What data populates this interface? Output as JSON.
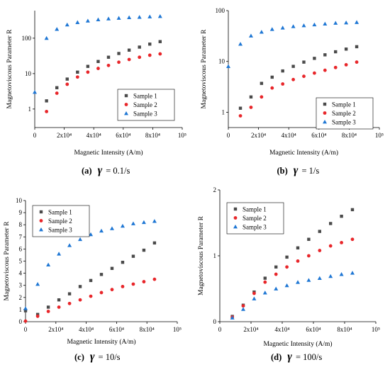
{
  "legend_labels": [
    "Sample 1",
    "Sample 2",
    "Sample 3"
  ],
  "colors": {
    "sample1": "#4a4a4a",
    "sample2": "#e8262a",
    "sample3": "#1f77d4"
  },
  "chart_data": [
    {
      "type": "scatter",
      "caption_letter": "(a)",
      "caption_rate": "= 0.1/s",
      "ylabel": "Magnetoviscous Parameter R",
      "xlabel": "Magnetic Intensity (A/m)",
      "yscale": "log",
      "ylim": [
        0.3,
        600
      ],
      "xlim": [
        0,
        100000
      ],
      "x_ticks": [
        "0",
        "2x10⁴",
        "4x10⁴",
        "6x10⁴",
        "8x10⁴",
        "10⁵"
      ],
      "y_ticks": [
        "1",
        "10",
        "100"
      ],
      "legend": "center-right",
      "series": [
        {
          "name": "Sample 1",
          "marker": "square",
          "x": [
            8000,
            15000,
            22000,
            29000,
            36000,
            43000,
            50000,
            57000,
            64000,
            71000,
            78000,
            85000
          ],
          "y": [
            1.7,
            4,
            7,
            11,
            16,
            22,
            29,
            37,
            46,
            56,
            68,
            80
          ]
        },
        {
          "name": "Sample 2",
          "marker": "circle",
          "x": [
            8000,
            15000,
            22000,
            29000,
            36000,
            43000,
            50000,
            57000,
            64000,
            71000,
            78000,
            85000
          ],
          "y": [
            0.85,
            2.8,
            5,
            8,
            11,
            14,
            17,
            21,
            25,
            29,
            33,
            36
          ]
        },
        {
          "name": "Sample 3",
          "marker": "triangle",
          "x": [
            0,
            8000,
            15000,
            22000,
            29000,
            36000,
            43000,
            50000,
            57000,
            64000,
            71000,
            78000,
            85000
          ],
          "y": [
            3,
            100,
            180,
            240,
            280,
            310,
            335,
            355,
            370,
            385,
            395,
            405,
            415
          ]
        }
      ]
    },
    {
      "type": "scatter",
      "caption_letter": "(b)",
      "caption_rate": "= 1/s",
      "ylabel": "Magnetoviscous Parameter R",
      "xlabel": "Magnetic Intensity (A/m)",
      "yscale": "log",
      "ylim": [
        0.5,
        100
      ],
      "xlim": [
        0,
        100000
      ],
      "x_ticks": [
        "0",
        "2x10⁴",
        "4x10⁴",
        "6x10⁴",
        "8x10⁴",
        "10⁵"
      ],
      "y_ticks": [
        "1",
        "10",
        "100"
      ],
      "legend": "lower-right",
      "series": [
        {
          "name": "Sample 1",
          "marker": "square",
          "x": [
            8000,
            15000,
            22000,
            29000,
            36000,
            43000,
            50000,
            57000,
            64000,
            71000,
            78000,
            85000
          ],
          "y": [
            1.2,
            2,
            3.7,
            4.9,
            6.5,
            8,
            9.7,
            11.5,
            13.5,
            15.5,
            17.5,
            19.5
          ]
        },
        {
          "name": "Sample 2",
          "marker": "circle",
          "x": [
            8000,
            15000,
            22000,
            29000,
            36000,
            43000,
            50000,
            57000,
            64000,
            71000,
            78000,
            85000
          ],
          "y": [
            0.85,
            1.25,
            2,
            3,
            3.6,
            4.4,
            5.1,
            5.9,
            6.7,
            7.6,
            8.6,
            9.7
          ]
        },
        {
          "name": "Sample 3",
          "marker": "triangle",
          "x": [
            0,
            8000,
            15000,
            22000,
            29000,
            36000,
            43000,
            50000,
            57000,
            64000,
            71000,
            78000,
            85000
          ],
          "y": [
            8,
            22,
            32,
            38,
            43,
            46,
            49,
            51,
            53,
            55,
            57,
            58,
            59
          ]
        }
      ]
    },
    {
      "type": "scatter",
      "caption_letter": "(c)",
      "caption_rate": "= 10/s",
      "ylabel": "Magnetoviscous Parameter R",
      "xlabel": "Magnetic Intensity (A/m)",
      "yscale": "linear",
      "ylim": [
        0,
        10
      ],
      "xlim": [
        0,
        100000
      ],
      "x_ticks": [
        "0",
        "2x10⁴",
        "4x10⁴",
        "6x10⁴",
        "8x10⁴",
        "10⁵"
      ],
      "y_ticks": [
        "0",
        "1",
        "2",
        "3",
        "4",
        "5",
        "6",
        "7",
        "8",
        "9",
        "10"
      ],
      "legend": "top-left",
      "series": [
        {
          "name": "Sample 1",
          "marker": "square",
          "x": [
            8000,
            15000,
            22000,
            29000,
            36000,
            43000,
            50000,
            57000,
            64000,
            71000,
            78000,
            85000,
            0
          ],
          "y": [
            0.6,
            1.2,
            1.8,
            2.3,
            2.9,
            3.4,
            3.9,
            4.4,
            4.9,
            5.4,
            5.9,
            6.5,
            0.9
          ]
        },
        {
          "name": "Sample 2",
          "marker": "circle",
          "x": [
            8000,
            15000,
            22000,
            29000,
            36000,
            43000,
            50000,
            57000,
            64000,
            71000,
            78000,
            85000,
            0
          ],
          "y": [
            0.45,
            0.85,
            1.2,
            1.5,
            1.8,
            2.1,
            2.4,
            2.65,
            2.9,
            3.1,
            3.3,
            3.5,
            0.05
          ]
        },
        {
          "name": "Sample 3",
          "marker": "triangle",
          "x": [
            0,
            8000,
            15000,
            22000,
            29000,
            36000,
            43000,
            50000,
            57000,
            64000,
            71000,
            78000,
            85000
          ],
          "y": [
            1.1,
            3.1,
            4.7,
            5.6,
            6.3,
            6.8,
            7.2,
            7.5,
            7.7,
            7.9,
            8.1,
            8.2,
            8.3
          ]
        }
      ]
    },
    {
      "type": "scatter",
      "caption_letter": "(d)",
      "caption_rate": "= 100/s",
      "ylabel": "Magnetoviscous Parameter R",
      "xlabel": "Magnetic Intensity (A/m)",
      "yscale": "linear",
      "ylim": [
        0,
        2
      ],
      "xlim": [
        0,
        100000
      ],
      "x_ticks": [
        "0",
        "2x10⁴",
        "4x10⁴",
        "6x10⁴",
        "8x10⁴",
        "10⁵"
      ],
      "y_ticks": [
        "0",
        "1",
        "2"
      ],
      "legend": "top-left",
      "series": [
        {
          "name": "Sample 1",
          "marker": "square",
          "x": [
            8000,
            15000,
            22000,
            29000,
            36000,
            43000,
            50000,
            57000,
            64000,
            71000,
            78000,
            85000
          ],
          "y": [
            0.08,
            0.25,
            0.45,
            0.66,
            0.83,
            0.98,
            1.12,
            1.25,
            1.37,
            1.49,
            1.6,
            1.7
          ]
        },
        {
          "name": "Sample 2",
          "marker": "circle",
          "x": [
            8000,
            15000,
            22000,
            29000,
            36000,
            43000,
            50000,
            57000,
            64000,
            71000,
            78000,
            85000
          ],
          "y": [
            0.07,
            0.24,
            0.43,
            0.6,
            0.72,
            0.83,
            0.92,
            1.0,
            1.08,
            1.15,
            1.2,
            1.25
          ]
        },
        {
          "name": "Sample 3",
          "marker": "triangle",
          "x": [
            8000,
            15000,
            22000,
            29000,
            36000,
            43000,
            50000,
            57000,
            64000,
            71000,
            78000,
            85000
          ],
          "y": [
            0.06,
            0.19,
            0.35,
            0.44,
            0.5,
            0.55,
            0.6,
            0.63,
            0.66,
            0.69,
            0.72,
            0.74
          ]
        }
      ]
    }
  ]
}
